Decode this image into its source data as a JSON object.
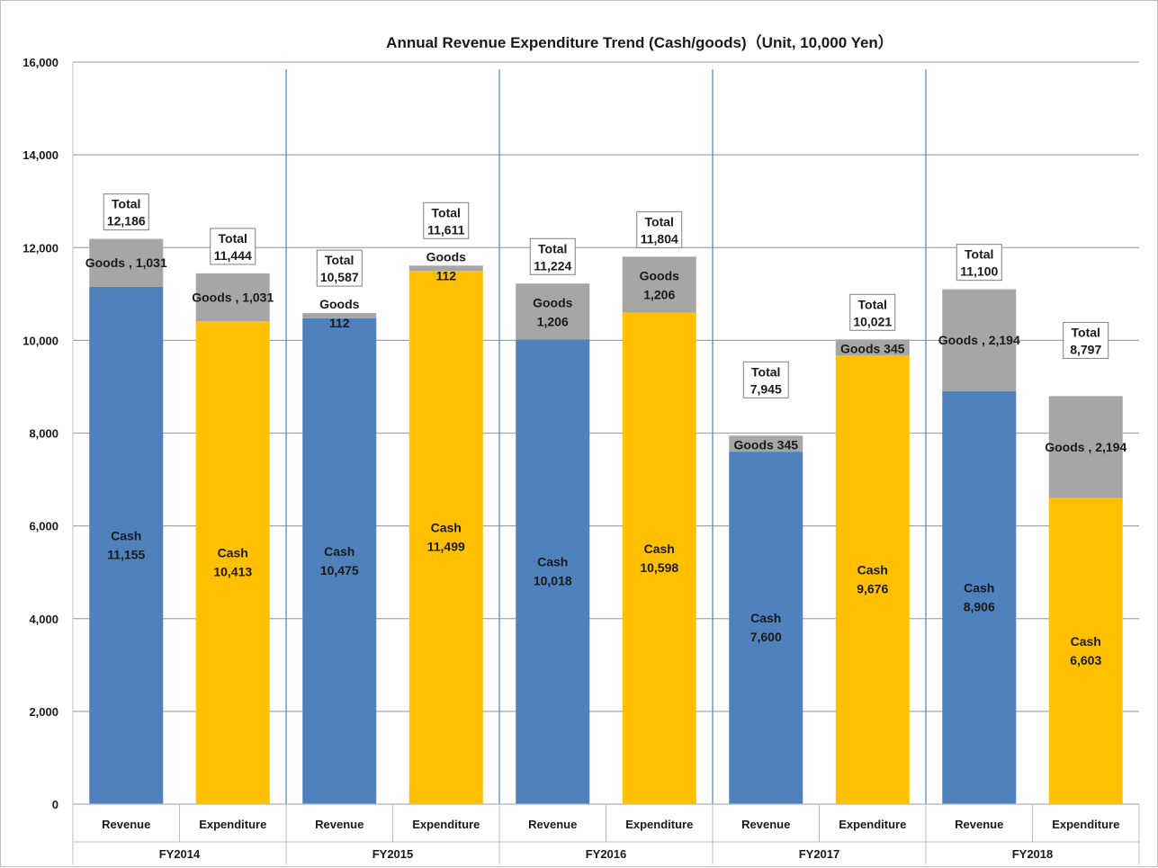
{
  "chart_data": {
    "type": "bar",
    "stacked": true,
    "title": "Annual Revenue Expenditure Trend (Cash/goods)（Unit, 10,000 Yen）",
    "xlabel": "",
    "ylabel": "",
    "ylim": [
      0,
      16000
    ],
    "yticks": [
      0,
      2000,
      4000,
      6000,
      8000,
      10000,
      12000,
      14000,
      16000
    ],
    "ytick_labels": [
      "0",
      "2,000",
      "4,000",
      "6,000",
      "8,000",
      "10,000",
      "12,000",
      "14,000",
      "16,000"
    ],
    "grid": true,
    "legend": "none",
    "colors": {
      "revenue_cash": "#4f81bd",
      "expenditure_cash": "#ffc000",
      "goods": "#a6a6a6",
      "grid": "#a6a6a6",
      "separator": "#4f81bd"
    },
    "groups": [
      {
        "label": "FY2014",
        "bars": [
          {
            "category": "Revenue",
            "kind": "revenue",
            "cash": 11155,
            "goods": 1031,
            "total": 12186,
            "cash_label": [
              "Cash",
              "11,155"
            ],
            "goods_label": [
              "Goods , 1,031"
            ],
            "total_label": [
              "Total",
              "12,186"
            ]
          },
          {
            "category": "Expenditure",
            "kind": "expenditure",
            "cash": 10413,
            "goods": 1031,
            "total": 11444,
            "cash_label": [
              "Cash",
              "10,413"
            ],
            "goods_label": [
              "Goods , 1,031"
            ],
            "total_label": [
              "Total",
              "11,444"
            ]
          }
        ]
      },
      {
        "label": "FY2015",
        "bars": [
          {
            "category": "Revenue",
            "kind": "revenue",
            "cash": 10475,
            "goods": 112,
            "total": 10587,
            "cash_label": [
              "Cash",
              "10,475"
            ],
            "goods_label": [
              "Goods",
              "112"
            ],
            "total_label": [
              "Total",
              "10,587"
            ]
          },
          {
            "category": "Expenditure",
            "kind": "expenditure",
            "cash": 11499,
            "goods": 112,
            "total": 11611,
            "cash_label": [
              "Cash",
              "11,499"
            ],
            "goods_label": [
              "Goods",
              "112"
            ],
            "total_label": [
              "Total",
              "11,611"
            ]
          }
        ]
      },
      {
        "label": "FY2016",
        "bars": [
          {
            "category": "Revenue",
            "kind": "revenue",
            "cash": 10018,
            "goods": 1206,
            "total": 11224,
            "cash_label": [
              "Cash",
              "10,018"
            ],
            "goods_label": [
              "Goods",
              "1,206"
            ],
            "total_label": [
              "Total",
              "11,224"
            ]
          },
          {
            "category": "Expenditure",
            "kind": "expenditure",
            "cash": 10598,
            "goods": 1206,
            "total": 11804,
            "cash_label": [
              "Cash",
              "10,598"
            ],
            "goods_label": [
              "Goods",
              "1,206"
            ],
            "total_label": [
              "Total",
              "11,804"
            ]
          }
        ]
      },
      {
        "label": "FY2017",
        "bars": [
          {
            "category": "Revenue",
            "kind": "revenue",
            "cash": 7600,
            "goods": 345,
            "total": 7945,
            "cash_label": [
              "Cash",
              "7,600"
            ],
            "goods_label": [
              "Goods 345"
            ],
            "total_label": [
              "Total",
              "7,945"
            ]
          },
          {
            "category": "Expenditure",
            "kind": "expenditure",
            "cash": 9676,
            "goods": 345,
            "total": 10021,
            "cash_label": [
              "Cash",
              "9,676"
            ],
            "goods_label": [
              "Goods 345"
            ],
            "total_label": [
              "Total",
              "10,021"
            ]
          }
        ]
      },
      {
        "label": "FY2018",
        "bars": [
          {
            "category": "Revenue",
            "kind": "revenue",
            "cash": 8906,
            "goods": 2194,
            "total": 11100,
            "cash_label": [
              "Cash",
              "8,906"
            ],
            "goods_label": [
              "Goods , 2,194"
            ],
            "total_label": [
              "Total",
              "11,100"
            ]
          },
          {
            "category": "Expenditure",
            "kind": "expenditure",
            "cash": 6603,
            "goods": 2194,
            "total": 8797,
            "cash_label": [
              "Cash",
              "6,603"
            ],
            "goods_label": [
              "Goods , 2,194"
            ],
            "total_label": [
              "Total",
              "8,797"
            ]
          }
        ]
      }
    ]
  }
}
